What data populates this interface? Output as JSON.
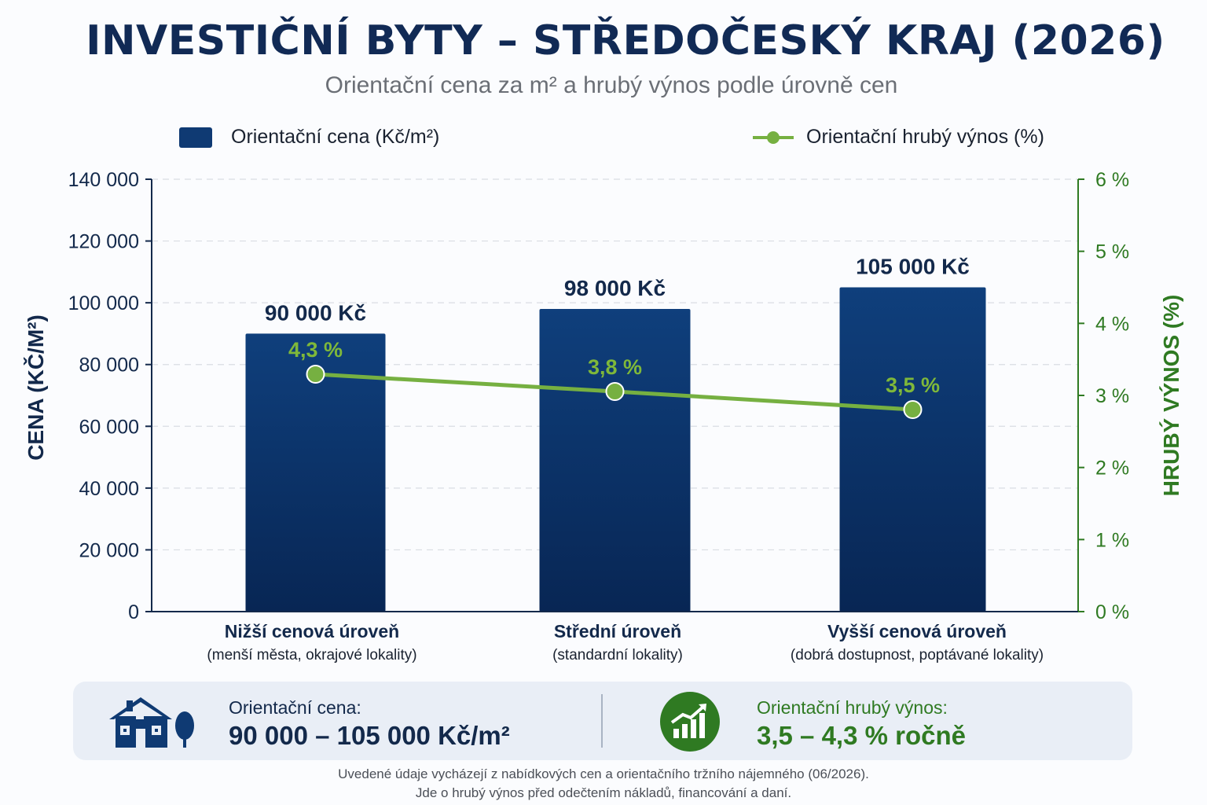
{
  "title": "INVESTIČNÍ BYTY – STŘEDOČESKÝ KRAJ (2026)",
  "subtitle": "Orientační cena za m² a hrubý výnos podle úrovně cen",
  "legend": {
    "price": "Orientační cena (Kč/m²)",
    "yield": "Orientační hrubý výnos (%)"
  },
  "colors": {
    "bar": "#0f3a73",
    "bar_dark": "#092a57",
    "yield_line": "#76b041",
    "yield_axis": "#2f7a22",
    "navy": "#13294b"
  },
  "chart_data": {
    "type": "bar",
    "categories": [
      "Nižší cenová úroveň",
      "Střední úroveň",
      "Vyšší cenová úroveň"
    ],
    "category_subtitles": [
      "(menší města, okrajové lokality)",
      "(standardní lokality)",
      "(dobrá dostupnost, poptávané lokality)"
    ],
    "series": [
      {
        "name": "Orientační cena (Kč/m²)",
        "type": "bar",
        "axis": "left",
        "values": [
          90000,
          98000,
          105000
        ],
        "labels": [
          "90 000 Kč",
          "98 000 Kč",
          "105 000 Kč"
        ]
      },
      {
        "name": "Orientační hrubý výnos (%)",
        "type": "line",
        "axis": "right",
        "values": [
          4.3,
          3.8,
          3.5
        ],
        "labels": [
          "4,3 %",
          "3,8 %",
          "3,5 %"
        ]
      }
    ],
    "ylabel": "CENA (KČ/M²)",
    "y2label": "HRUBÝ VÝNOS (%)",
    "ylim": [
      0,
      140000
    ],
    "y_ticks": [
      0,
      20000,
      40000,
      60000,
      80000,
      100000,
      120000,
      140000
    ],
    "y_tick_labels": [
      "0",
      "20 000",
      "40 000",
      "60 000",
      "80 000",
      "100 000",
      "120 000",
      "140 000"
    ],
    "y2lim": [
      0,
      6
    ],
    "y2_ticks": [
      0,
      1,
      2,
      3,
      4,
      5,
      6
    ],
    "y2_tick_labels": [
      "0 %",
      "1 %",
      "2 %",
      "3 %",
      "4 %",
      "5 %",
      "6 %"
    ],
    "grid": true,
    "legend_position": "top"
  },
  "summary": {
    "price_label": "Orientační cena:",
    "price_value": "90 000 – 105 000 Kč/m²",
    "yield_label": "Orientační hrubý výnos:",
    "yield_value": "3,5 – 4,3 % ročně",
    "house_icon": "house-icon",
    "growth_icon": "growth-chart-icon"
  },
  "footnote": {
    "line1": "Uvedené údaje vycházejí z nabídkových cen a orientačního tržního nájemného (06/2026).",
    "line2": "Jde o hrubý výnos před odečtením nákladů, financování a daní."
  }
}
